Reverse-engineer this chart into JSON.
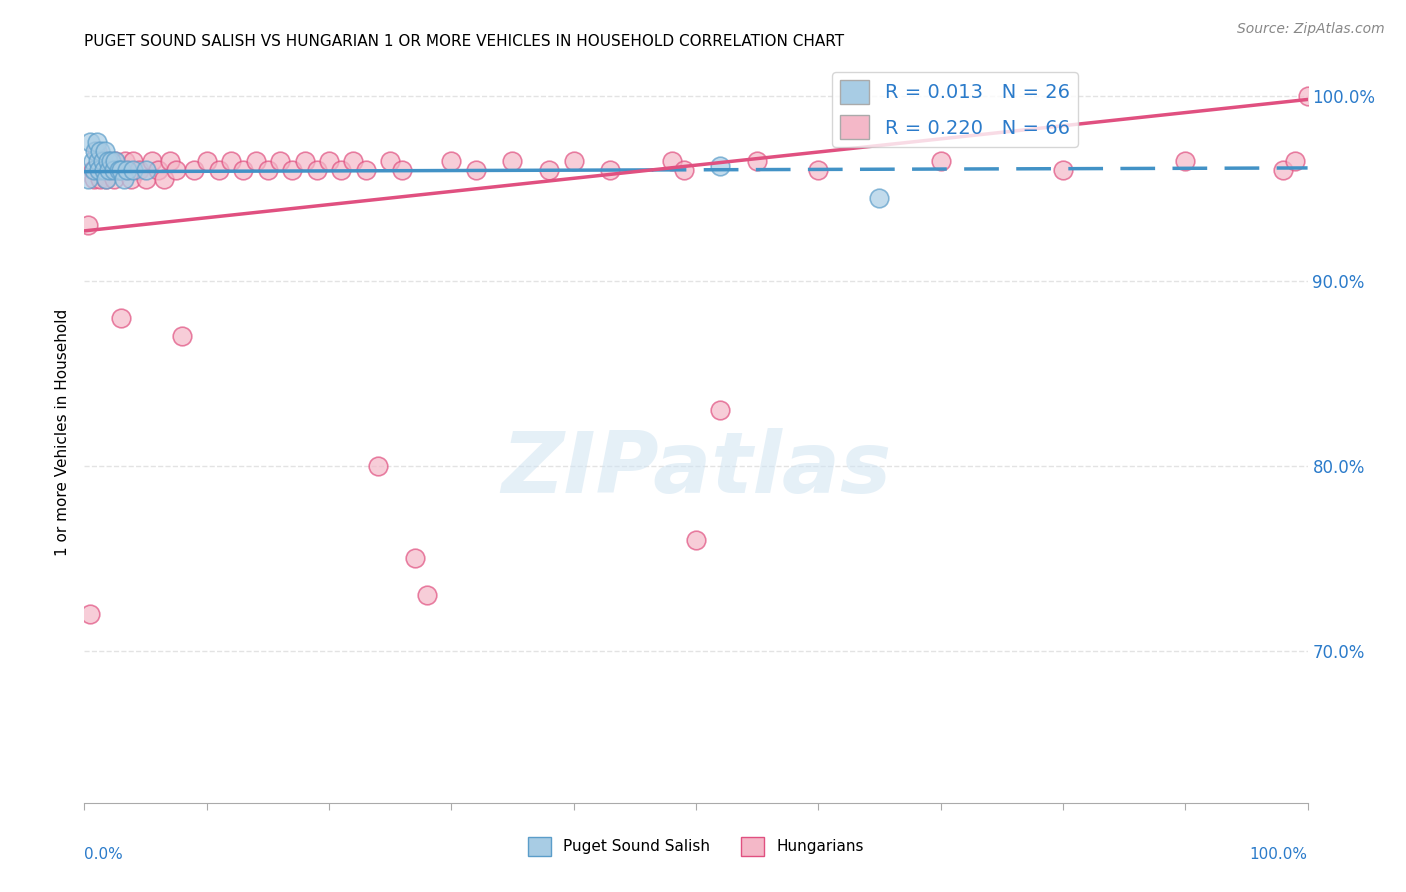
{
  "title": "PUGET SOUND SALISH VS HUNGARIAN 1 OR MORE VEHICLES IN HOUSEHOLD CORRELATION CHART",
  "source": "Source: ZipAtlas.com",
  "ylabel": "1 or more Vehicles in Household",
  "xlim": [
    0.0,
    1.0
  ],
  "ylim": [
    0.618,
    1.018
  ],
  "yticks": [
    0.7,
    0.8,
    0.9,
    1.0
  ],
  "ytick_labels": [
    "70.0%",
    "80.0%",
    "90.0%",
    "100.0%"
  ],
  "xticks": [
    0.0,
    0.1,
    0.2,
    0.3,
    0.4,
    0.5,
    0.6,
    0.7,
    0.8,
    0.9,
    1.0
  ],
  "blue_R": 0.013,
  "blue_N": 26,
  "pink_R": 0.22,
  "pink_N": 66,
  "blue_color": "#a8cce4",
  "pink_color": "#f4b8c8",
  "blue_edge": "#5b9dc9",
  "pink_edge": "#e05080",
  "trend_blue_color": "#4292c6",
  "trend_pink_color": "#e05080",
  "watermark": "ZIPatlas",
  "blue_scatter_x": [
    0.003,
    0.005,
    0.007,
    0.008,
    0.009,
    0.01,
    0.011,
    0.012,
    0.013,
    0.015,
    0.016,
    0.017,
    0.018,
    0.019,
    0.02,
    0.022,
    0.024,
    0.025,
    0.028,
    0.03,
    0.032,
    0.035,
    0.04,
    0.05,
    0.52,
    0.65
  ],
  "blue_scatter_y": [
    0.955,
    0.975,
    0.965,
    0.96,
    0.97,
    0.975,
    0.965,
    0.96,
    0.97,
    0.965,
    0.96,
    0.97,
    0.955,
    0.965,
    0.96,
    0.965,
    0.96,
    0.965,
    0.96,
    0.96,
    0.955,
    0.96,
    0.96,
    0.96,
    0.962,
    0.945
  ],
  "pink_scatter_x": [
    0.003,
    0.005,
    0.007,
    0.008,
    0.01,
    0.012,
    0.013,
    0.015,
    0.017,
    0.018,
    0.02,
    0.022,
    0.024,
    0.025,
    0.028,
    0.03,
    0.033,
    0.035,
    0.038,
    0.04,
    0.045,
    0.05,
    0.055,
    0.06,
    0.065,
    0.07,
    0.075,
    0.08,
    0.09,
    0.1,
    0.11,
    0.12,
    0.13,
    0.14,
    0.15,
    0.16,
    0.17,
    0.18,
    0.19,
    0.2,
    0.21,
    0.22,
    0.23,
    0.24,
    0.25,
    0.26,
    0.27,
    0.28,
    0.3,
    0.32,
    0.35,
    0.38,
    0.4,
    0.43,
    0.48,
    0.49,
    0.5,
    0.52,
    0.55,
    0.6,
    0.7,
    0.8,
    0.9,
    0.98,
    0.99,
    1.0
  ],
  "pink_scatter_y": [
    0.93,
    0.72,
    0.96,
    0.955,
    0.97,
    0.96,
    0.955,
    0.965,
    0.96,
    0.955,
    0.965,
    0.96,
    0.955,
    0.965,
    0.96,
    0.88,
    0.965,
    0.96,
    0.955,
    0.965,
    0.96,
    0.955,
    0.965,
    0.96,
    0.955,
    0.965,
    0.96,
    0.87,
    0.96,
    0.965,
    0.96,
    0.965,
    0.96,
    0.965,
    0.96,
    0.965,
    0.96,
    0.965,
    0.96,
    0.965,
    0.96,
    0.965,
    0.96,
    0.8,
    0.965,
    0.96,
    0.75,
    0.73,
    0.965,
    0.96,
    0.965,
    0.96,
    0.965,
    0.96,
    0.965,
    0.96,
    0.76,
    0.83,
    0.965,
    0.96,
    0.965,
    0.96,
    0.965,
    0.96,
    0.965,
    1.0
  ],
  "background_color": "#ffffff",
  "grid_color": "#dddddd",
  "blue_trend_start_x": 0.0,
  "blue_trend_start_y": 0.959,
  "blue_trend_end_x": 1.0,
  "blue_trend_end_y": 0.961,
  "pink_trend_start_x": 0.0,
  "pink_trend_start_y": 0.927,
  "pink_trend_end_x": 1.0,
  "pink_trend_end_y": 0.998
}
